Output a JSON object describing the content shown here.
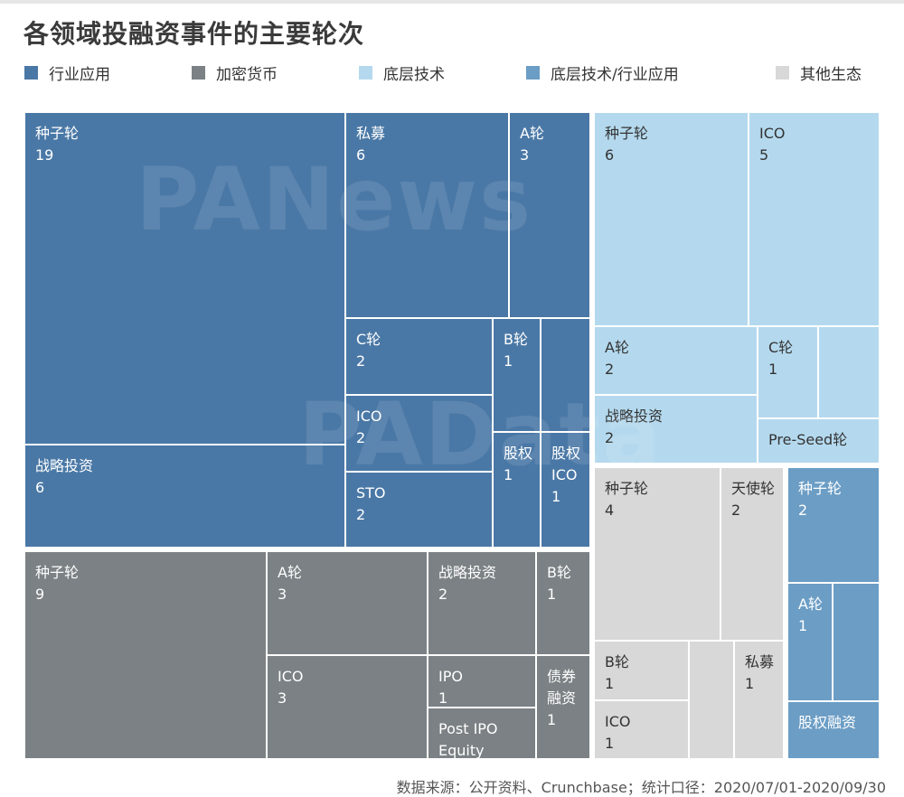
{
  "title": "各领域投融资事件的主要轮次",
  "footer": "数据来源：公开资料、Crunchbase；统计口径：2020/07/01-2020/09/30",
  "watermarks": [
    "PANews",
    "PAData"
  ],
  "chart_data": {
    "type": "treemap",
    "title": "各领域投融资事件的主要轮次",
    "legend": [
      {
        "name": "行业应用",
        "color": "#4a78a6"
      },
      {
        "name": "加密货币",
        "color": "#7b8184"
      },
      {
        "name": "底层技术",
        "color": "#b4d9ee"
      },
      {
        "name": "底层技术/行业应用",
        "color": "#6b9dc5"
      },
      {
        "name": "其他生态",
        "color": "#d8d8d8"
      }
    ],
    "categories": [
      {
        "name": "行业应用",
        "items": [
          {
            "label": "种子轮",
            "value": 19
          },
          {
            "label": "战略投资",
            "value": 6
          },
          {
            "label": "私募",
            "value": 6
          },
          {
            "label": "A轮",
            "value": 3
          },
          {
            "label": "C轮",
            "value": 2
          },
          {
            "label": "ICO",
            "value": 2
          },
          {
            "label": "STO",
            "value": 2
          },
          {
            "label": "B轮",
            "value": 1
          },
          {
            "label": "",
            "value": 1
          },
          {
            "label": "股权",
            "value": 1
          },
          {
            "label": "股权ICO",
            "value": 1
          }
        ]
      },
      {
        "name": "加密货币",
        "items": [
          {
            "label": "种子轮",
            "value": 9
          },
          {
            "label": "A轮",
            "value": 3
          },
          {
            "label": "ICO",
            "value": 3
          },
          {
            "label": "战略投资",
            "value": 2
          },
          {
            "label": "B轮",
            "value": 1
          },
          {
            "label": "IPO",
            "value": 1
          },
          {
            "label": "Post IPO Equity",
            "value": 1
          },
          {
            "label": "债券融资",
            "value": 1
          }
        ]
      },
      {
        "name": "底层技术",
        "items": [
          {
            "label": "种子轮",
            "value": 6
          },
          {
            "label": "ICO",
            "value": 5
          },
          {
            "label": "A轮",
            "value": 2
          },
          {
            "label": "战略投资",
            "value": 2
          },
          {
            "label": "C轮",
            "value": 1
          },
          {
            "label": "",
            "value": 1
          },
          {
            "label": "Pre-Seed轮",
            "value": 1
          }
        ]
      },
      {
        "name": "其他生态",
        "items": [
          {
            "label": "种子轮",
            "value": 4
          },
          {
            "label": "天使轮",
            "value": 2
          },
          {
            "label": "B轮",
            "value": 1
          },
          {
            "label": "",
            "value": 1
          },
          {
            "label": "私募",
            "value": 1
          },
          {
            "label": "ICO",
            "value": 1
          }
        ]
      },
      {
        "name": "底层技术/行业应用",
        "items": [
          {
            "label": "种子轮",
            "value": 2
          },
          {
            "label": "A轮",
            "value": 1
          },
          {
            "label": "",
            "value": 1
          },
          {
            "label": "股权融资",
            "value": 1
          }
        ]
      }
    ]
  }
}
